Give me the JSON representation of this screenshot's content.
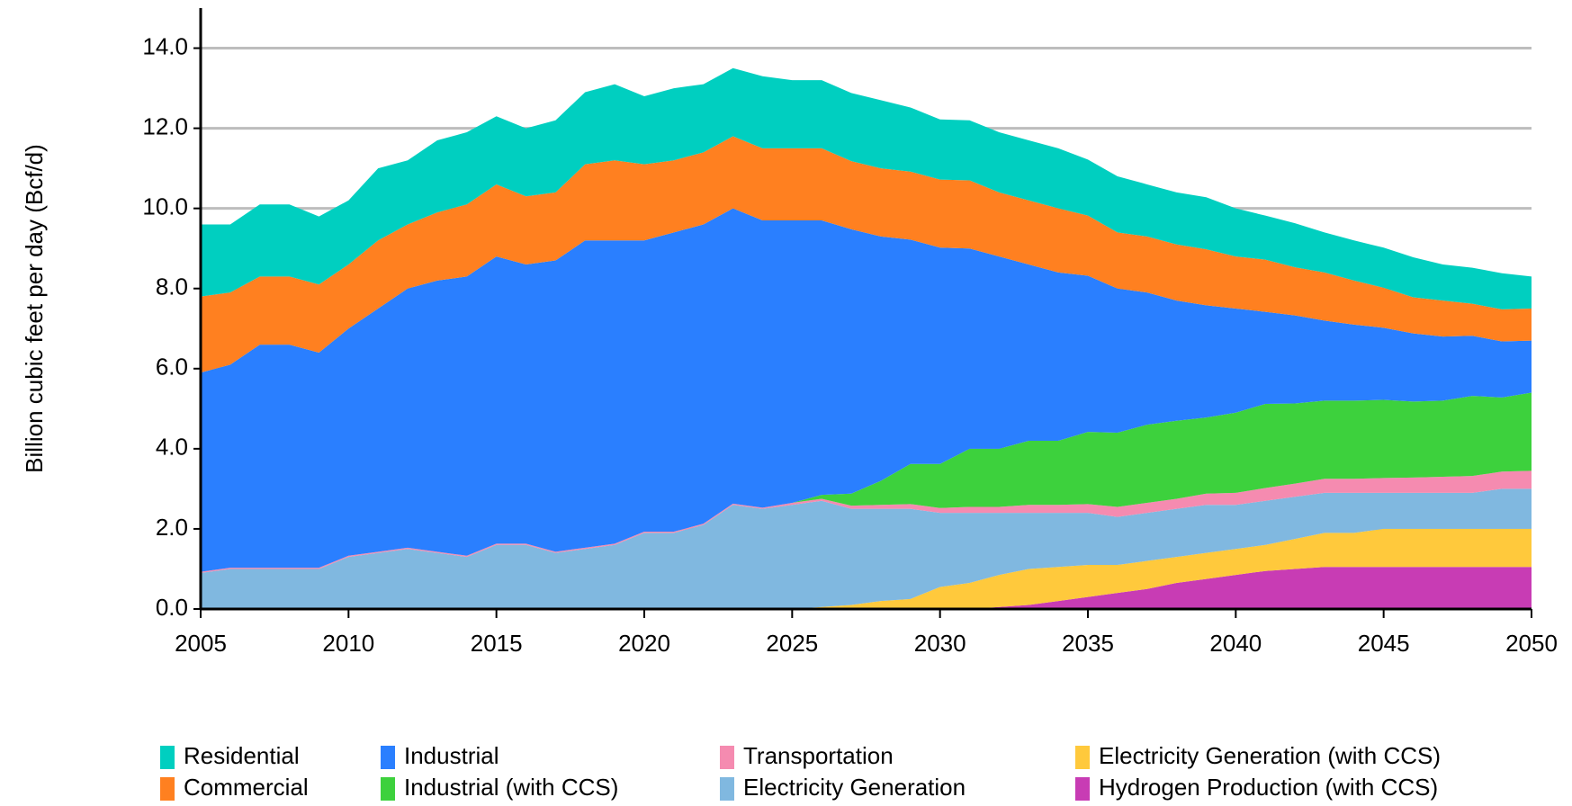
{
  "chart_data": {
    "type": "stacked_area",
    "y_label": "Billion cubic feet per day (Bcf/d)",
    "x": [
      2005,
      2006,
      2007,
      2008,
      2009,
      2010,
      2011,
      2012,
      2013,
      2014,
      2015,
      2016,
      2017,
      2018,
      2019,
      2020,
      2021,
      2022,
      2023,
      2024,
      2025,
      2026,
      2027,
      2028,
      2029,
      2030,
      2031,
      2032,
      2033,
      2034,
      2035,
      2036,
      2037,
      2038,
      2039,
      2040,
      2041,
      2042,
      2043,
      2044,
      2045,
      2046,
      2047,
      2048,
      2049,
      2050
    ],
    "xlim": [
      2005,
      2050
    ],
    "xticks": [
      2005,
      2010,
      2015,
      2020,
      2025,
      2030,
      2035,
      2040,
      2045,
      2050
    ],
    "ylim": [
      0,
      15
    ],
    "yticks": [
      {
        "value": 0,
        "label": "0.0"
      },
      {
        "value": 2,
        "label": "2.0"
      },
      {
        "value": 4,
        "label": "4.0"
      },
      {
        "value": 6,
        "label": "6.0"
      },
      {
        "value": 8,
        "label": "8.0"
      },
      {
        "value": 10,
        "label": "10.0"
      },
      {
        "value": 12,
        "label": "12.0"
      },
      {
        "value": 14,
        "label": "14.0"
      }
    ],
    "grid": true,
    "series": [
      {
        "name": "Hydrogen Production (with CCS)",
        "color": "#c83cb4",
        "values": [
          0,
          0,
          0,
          0,
          0,
          0,
          0,
          0,
          0,
          0,
          0,
          0,
          0,
          0,
          0,
          0,
          0,
          0,
          0,
          0,
          0,
          0,
          0,
          0,
          0,
          0,
          0,
          0.05,
          0.1,
          0.2,
          0.3,
          0.4,
          0.5,
          0.65,
          0.75,
          0.85,
          0.95,
          1.0,
          1.05,
          1.05,
          1.05,
          1.05,
          1.05,
          1.05,
          1.05,
          1.05
        ]
      },
      {
        "name": "Electricity Generation (with CCS)",
        "color": "#ffc93c",
        "values": [
          0,
          0,
          0,
          0,
          0,
          0,
          0,
          0,
          0,
          0,
          0,
          0,
          0,
          0,
          0,
          0,
          0,
          0,
          0,
          0,
          0,
          0.05,
          0.1,
          0.2,
          0.25,
          0.55,
          0.65,
          0.8,
          0.9,
          0.85,
          0.8,
          0.7,
          0.7,
          0.65,
          0.65,
          0.65,
          0.65,
          0.75,
          0.85,
          0.85,
          0.95,
          0.95,
          0.95,
          0.95,
          0.95,
          0.95
        ]
      },
      {
        "name": "Electricity Generation",
        "color": "#80b8e0",
        "values": [
          0.9,
          1.0,
          1.0,
          1.0,
          1.0,
          1.3,
          1.4,
          1.5,
          1.4,
          1.3,
          1.6,
          1.6,
          1.4,
          1.5,
          1.6,
          1.9,
          1.9,
          2.1,
          2.6,
          2.5,
          2.6,
          2.65,
          2.4,
          2.3,
          2.25,
          1.85,
          1.75,
          1.55,
          1.4,
          1.35,
          1.3,
          1.2,
          1.2,
          1.2,
          1.2,
          1.1,
          1.1,
          1.05,
          1.0,
          1.0,
          0.9,
          0.9,
          0.9,
          0.9,
          1.0,
          1.0
        ]
      },
      {
        "name": "Transportation",
        "color": "#f58bb0",
        "values": [
          0.03,
          0.03,
          0.03,
          0.03,
          0.03,
          0.03,
          0.03,
          0.03,
          0.03,
          0.03,
          0.03,
          0.03,
          0.03,
          0.03,
          0.03,
          0.03,
          0.03,
          0.03,
          0.03,
          0.03,
          0.05,
          0.05,
          0.08,
          0.1,
          0.12,
          0.12,
          0.15,
          0.15,
          0.2,
          0.2,
          0.22,
          0.25,
          0.25,
          0.25,
          0.28,
          0.3,
          0.32,
          0.33,
          0.35,
          0.35,
          0.37,
          0.38,
          0.4,
          0.42,
          0.43,
          0.45
        ]
      },
      {
        "name": "Industrial (with CCS)",
        "color": "#3dd13d",
        "values": [
          0,
          0,
          0,
          0,
          0,
          0,
          0,
          0,
          0,
          0,
          0,
          0,
          0,
          0,
          0,
          0,
          0,
          0,
          0,
          0,
          0,
          0.1,
          0.3,
          0.6,
          1.0,
          1.1,
          1.45,
          1.45,
          1.6,
          1.6,
          1.8,
          1.85,
          1.95,
          1.95,
          1.9,
          2.0,
          2.1,
          2.0,
          1.95,
          1.95,
          1.95,
          1.9,
          1.9,
          2.0,
          1.85,
          1.95
        ]
      },
      {
        "name": "Industrial",
        "color": "#2a7fff",
        "values": [
          4.97,
          5.07,
          5.57,
          5.57,
          5.37,
          5.67,
          6.07,
          6.47,
          6.77,
          6.97,
          7.17,
          6.97,
          7.27,
          7.67,
          7.57,
          7.27,
          7.47,
          7.47,
          7.37,
          7.17,
          7.05,
          6.85,
          6.6,
          6.1,
          5.6,
          5.4,
          5.0,
          4.8,
          4.4,
          4.2,
          3.9,
          3.6,
          3.3,
          3.0,
          2.8,
          2.6,
          2.3,
          2.2,
          2.0,
          1.9,
          1.8,
          1.7,
          1.6,
          1.5,
          1.4,
          1.3
        ]
      },
      {
        "name": "Commercial",
        "color": "#ff8020",
        "values": [
          1.9,
          1.8,
          1.7,
          1.7,
          1.7,
          1.6,
          1.7,
          1.6,
          1.7,
          1.8,
          1.8,
          1.7,
          1.7,
          1.9,
          2.0,
          1.9,
          1.8,
          1.8,
          1.8,
          1.8,
          1.8,
          1.8,
          1.7,
          1.7,
          1.7,
          1.7,
          1.7,
          1.6,
          1.6,
          1.6,
          1.5,
          1.4,
          1.4,
          1.4,
          1.4,
          1.3,
          1.3,
          1.2,
          1.2,
          1.1,
          1.0,
          0.9,
          0.9,
          0.8,
          0.8,
          0.8
        ]
      },
      {
        "name": "Residential",
        "color": "#00cfc0",
        "values": [
          1.8,
          1.7,
          1.8,
          1.8,
          1.7,
          1.6,
          1.8,
          1.6,
          1.8,
          1.8,
          1.7,
          1.7,
          1.8,
          1.8,
          1.9,
          1.7,
          1.8,
          1.7,
          1.7,
          1.8,
          1.7,
          1.7,
          1.7,
          1.7,
          1.6,
          1.5,
          1.5,
          1.5,
          1.5,
          1.5,
          1.4,
          1.4,
          1.3,
          1.3,
          1.3,
          1.2,
          1.1,
          1.1,
          1.0,
          1.0,
          1.0,
          1.0,
          0.9,
          0.9,
          0.9,
          0.8
        ]
      }
    ]
  }
}
